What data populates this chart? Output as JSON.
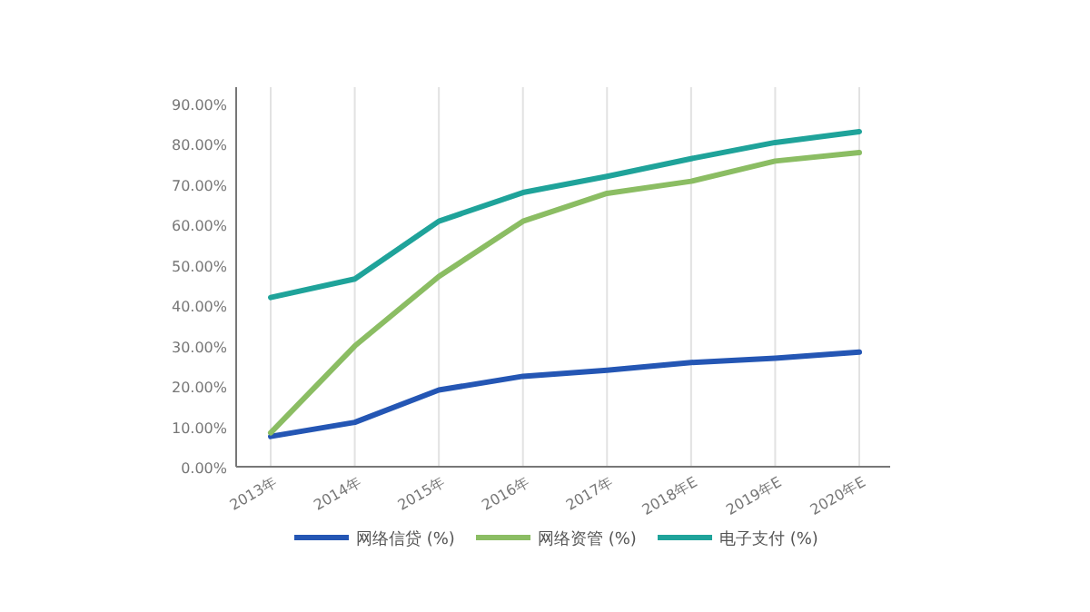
{
  "chart_data": {
    "type": "line",
    "categories": [
      "2013年",
      "2014年",
      "2015年",
      "2016年",
      "2017年",
      "2018年E",
      "2019年E",
      "2020年E"
    ],
    "series": [
      {
        "name": "网络信贷 (%)",
        "color": "#2456b4",
        "values": [
          7.5,
          11,
          19,
          22.4,
          23.9,
          25.8,
          26.9,
          28.4
        ]
      },
      {
        "name": "网络资管 (%)",
        "color": "#8bbd63",
        "values": [
          8.4,
          29.9,
          47.1,
          60.8,
          67.7,
          70.7,
          75.7,
          77.8
        ]
      },
      {
        "name": "电子支付 (%)",
        "color": "#1fa39a",
        "values": [
          41.9,
          46.5,
          60.8,
          67.9,
          71.9,
          76.3,
          80.3,
          83.0
        ]
      }
    ],
    "ylim": [
      0,
      94
    ],
    "yticks": [
      {
        "value": 0,
        "label": "0.00%"
      },
      {
        "value": 10,
        "label": "10.00%"
      },
      {
        "value": 20,
        "label": "20.00%"
      },
      {
        "value": 30,
        "label": "30.00%"
      },
      {
        "value": 40,
        "label": "40.00%"
      },
      {
        "value": 50,
        "label": "50.00%"
      },
      {
        "value": 60,
        "label": "60.00%"
      },
      {
        "value": 70,
        "label": "70.00%"
      },
      {
        "value": 80,
        "label": "80.00%"
      },
      {
        "value": 90,
        "label": "90.00%"
      }
    ],
    "grid": "x",
    "legend": "bottom",
    "marker": "none",
    "line_style": "solid"
  }
}
